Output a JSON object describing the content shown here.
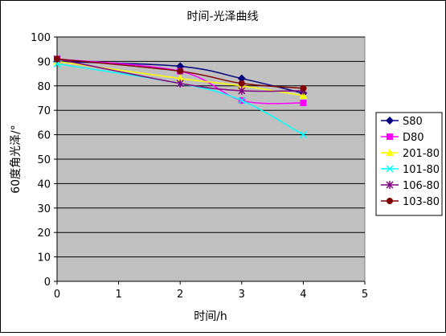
{
  "chart_data": {
    "type": "line",
    "title": "时间-光泽曲线",
    "xlabel": "时间/h",
    "ylabel": "60度角光泽/°",
    "xlim": [
      0,
      5
    ],
    "ylim": [
      0,
      100
    ],
    "x_ticks": [
      0,
      1,
      2,
      3,
      4,
      5
    ],
    "y_ticks": [
      0,
      10,
      20,
      30,
      40,
      50,
      60,
      70,
      80,
      90,
      100
    ],
    "grid": "horizontal",
    "legend_position": "right",
    "plot_background": "#c0c0c0",
    "series": [
      {
        "name": "S80",
        "color": "#000080",
        "marker": "diamond",
        "points": [
          [
            0,
            90
          ],
          [
            2,
            88
          ],
          [
            3,
            83
          ],
          [
            4,
            77
          ]
        ]
      },
      {
        "name": "D80",
        "color": "#ff00ff",
        "marker": "square",
        "points": [
          [
            0,
            91
          ],
          [
            2,
            86
          ],
          [
            3,
            74
          ],
          [
            4,
            73
          ]
        ]
      },
      {
        "name": "201-80",
        "color": "#ffff00",
        "marker": "triangle",
        "points": [
          [
            0,
            90
          ],
          [
            2,
            83
          ],
          [
            3,
            80
          ],
          [
            4,
            76
          ]
        ]
      },
      {
        "name": "101-80",
        "color": "#00ffff",
        "marker": "x",
        "points": [
          [
            0,
            89
          ],
          [
            2,
            81
          ],
          [
            3,
            74
          ],
          [
            4,
            60
          ]
        ]
      },
      {
        "name": "106-80",
        "color": "#800080",
        "marker": "star",
        "points": [
          [
            0,
            91
          ],
          [
            2,
            81
          ],
          [
            3,
            78
          ],
          [
            4,
            78
          ]
        ]
      },
      {
        "name": "103-80",
        "color": "#800000",
        "marker": "circle",
        "points": [
          [
            0,
            91
          ],
          [
            2,
            86
          ],
          [
            3,
            81
          ],
          [
            4,
            79
          ]
        ]
      }
    ]
  }
}
